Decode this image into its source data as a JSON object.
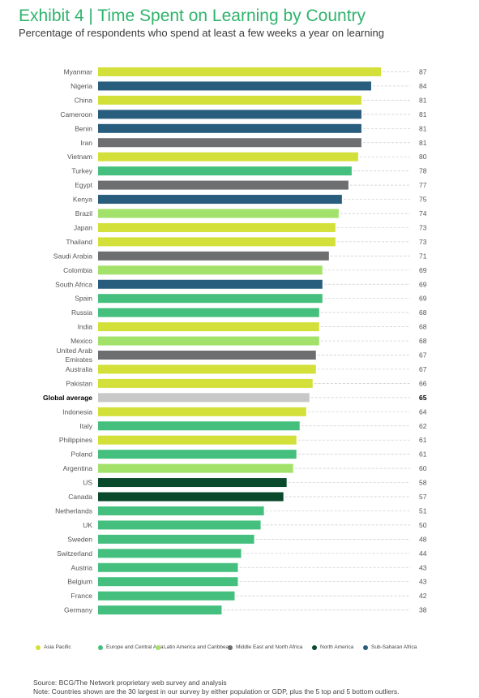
{
  "title": "Exhibit 4 | Time Spent on Learning by Country",
  "subtitle": "Percentage of respondents who spend at least a few weeks a year on learning",
  "source": "Source: BCG/The Network proprietary web survey and analysis",
  "note": "Note: Countries shown are the 30 largest in our survey by either population or GDP, plus the 5 top and 5 bottom outliers.",
  "colors": {
    "Asia Pacific": "#d4e03a",
    "Europe and Central Asia": "#45bf7e",
    "Latin America and Caribbean": "#a3e26a",
    "Middle East and North Africa": "#6d6e70",
    "North America": "#0a4a2c",
    "Sub-Saharan Africa": "#295d7e",
    "Global average": "#c8c8c8"
  },
  "legend": [
    {
      "label": "Asia Pacific",
      "color": "#d4e03a"
    },
    {
      "label": "Europe and Central Asia",
      "color": "#45bf7e"
    },
    {
      "label": "Latin America and Caribbean",
      "color": "#a3e26a"
    },
    {
      "label": "Middle East and North Africa",
      "color": "#6d6e70"
    },
    {
      "label": "North America",
      "color": "#0a4a2c"
    },
    {
      "label": "Sub-Saharan Africa",
      "color": "#295d7e"
    }
  ],
  "chart_data": {
    "type": "bar",
    "orientation": "horizontal",
    "categories": [
      "Myanmar",
      "Nigeria",
      "China",
      "Cameroon",
      "Benin",
      "Iran",
      "Vietnam",
      "Turkey",
      "Egypt",
      "Kenya",
      "Brazil",
      "Japan",
      "Thailand",
      "Saudi Arabia",
      "Colombia",
      "South Africa",
      "Spain",
      "Russia",
      "India",
      "Mexico",
      "United Arab Emirates",
      "Australia",
      "Pakistan",
      "Global average",
      "Indonesia",
      "Italy",
      "Philippines",
      "Poland",
      "Argentina",
      "US",
      "Canada",
      "Netherlands",
      "UK",
      "Sweden",
      "Switzerland",
      "Austria",
      "Belgium",
      "France",
      "Germany"
    ],
    "values": [
      87,
      84,
      81,
      81,
      81,
      81,
      80,
      78,
      77,
      75,
      74,
      73,
      73,
      71,
      69,
      69,
      69,
      68,
      68,
      68,
      67,
      67,
      66,
      65,
      64,
      62,
      61,
      61,
      60,
      58,
      57,
      51,
      50,
      48,
      44,
      43,
      43,
      42,
      38
    ],
    "regions": [
      "Asia Pacific",
      "Sub-Saharan Africa",
      "Asia Pacific",
      "Sub-Saharan Africa",
      "Sub-Saharan Africa",
      "Middle East and North Africa",
      "Asia Pacific",
      "Europe and Central Asia",
      "Middle East and North Africa",
      "Sub-Saharan Africa",
      "Latin America and Caribbean",
      "Asia Pacific",
      "Asia Pacific",
      "Middle East and North Africa",
      "Latin America and Caribbean",
      "Sub-Saharan Africa",
      "Europe and Central Asia",
      "Europe and Central Asia",
      "Asia Pacific",
      "Latin America and Caribbean",
      "Middle East and North Africa",
      "Asia Pacific",
      "Asia Pacific",
      "Global average",
      "Asia Pacific",
      "Europe and Central Asia",
      "Asia Pacific",
      "Europe and Central Asia",
      "Latin America and Caribbean",
      "North America",
      "North America",
      "Europe and Central Asia",
      "Europe and Central Asia",
      "Europe and Central Asia",
      "Europe and Central Asia",
      "Europe and Central Asia",
      "Europe and Central Asia",
      "Europe and Central Asia",
      "Europe and Central Asia"
    ],
    "xlim": [
      0,
      87
    ],
    "grid": false,
    "legend_position": "bottom"
  }
}
